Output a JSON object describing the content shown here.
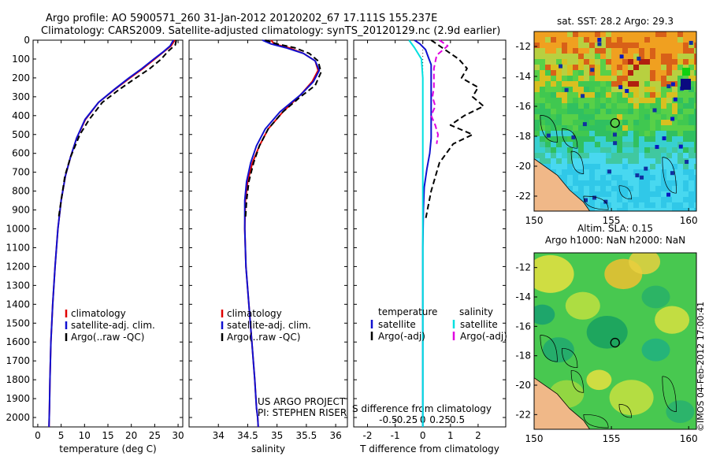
{
  "header": {
    "line1": "Argo profile: AO 5900571_260 31-Jan-2012 20120202_67 17.111S 155.237E",
    "line2": "Climatology: CARS2009. Satellite-adjusted climatology: synTS_20120129.nc (2.9d earlier)"
  },
  "colors": {
    "climatology": "#e00000",
    "satellite": "#1010d0",
    "argo": "#000000",
    "salinity_satellite": "#00e0e0",
    "salinity_argo": "#e000e0"
  },
  "depth_axis": {
    "ticks": [
      0,
      100,
      200,
      300,
      400,
      500,
      600,
      700,
      800,
      900,
      1000,
      1100,
      1200,
      1300,
      1400,
      1500,
      1600,
      1700,
      1800,
      1900,
      2000
    ],
    "range": [
      0,
      2050
    ]
  },
  "chart_data": [
    {
      "type": "line",
      "id": "temperature",
      "xlabel": "temperature (deg C)",
      "xlim": [
        -1,
        31
      ],
      "xticks": [
        0,
        5,
        10,
        15,
        20,
        25,
        30
      ],
      "ylim": [
        0,
        2050
      ],
      "legend": {
        "placement": "lower-left",
        "entries": [
          {
            "label": "climatology",
            "color": "#e00000"
          },
          {
            "label": "satellite-adj. clim.",
            "color": "#1010d0"
          },
          {
            "label": "Argo(..raw -QC)",
            "color": "#000000"
          }
        ]
      },
      "series": [
        {
          "name": "climatology",
          "color": "#e00000",
          "x": [
            29.3,
            28.5,
            27.0,
            25.0,
            22.5,
            19.7,
            16.5,
            13.0,
            10.2,
            8.3,
            7.0,
            5.9,
            5.0,
            4.3,
            3.7,
            3.2,
            2.8,
            2.6,
            2.5,
            2.4
          ],
          "y": [
            0,
            30,
            60,
            100,
            150,
            200,
            260,
            330,
            420,
            520,
            620,
            720,
            850,
            1000,
            1200,
            1400,
            1600,
            1800,
            1950,
            2050
          ]
        },
        {
          "name": "satellite-adj. clim.",
          "color": "#1010d0",
          "x": [
            29.0,
            28.3,
            26.9,
            24.8,
            22.3,
            19.5,
            16.4,
            13.0,
            10.1,
            8.3,
            7.0,
            5.9,
            5.0,
            4.3,
            3.7,
            3.2,
            2.8,
            2.6,
            2.5,
            2.4
          ],
          "y": [
            0,
            30,
            60,
            100,
            150,
            200,
            260,
            330,
            420,
            520,
            620,
            720,
            850,
            1000,
            1200,
            1400,
            1600,
            1800,
            1950,
            2050
          ]
        },
        {
          "name": "Argo(..raw -QC)",
          "color": "#000000",
          "x": [
            29.6,
            29.4,
            27.8,
            26.4,
            24.0,
            21.0,
            17.5,
            13.8,
            11.0,
            9.0,
            7.0,
            5.8,
            5.0,
            4.4
          ],
          "y": [
            0,
            25,
            60,
            100,
            150,
            200,
            260,
            330,
            420,
            500,
            620,
            720,
            850,
            950
          ]
        }
      ]
    },
    {
      "type": "line",
      "id": "salinity",
      "xlabel": "salinity",
      "xlim": [
        33.5,
        36.2
      ],
      "xticks": [
        34,
        34.5,
        35,
        35.5,
        36
      ],
      "ylim": [
        0,
        2050
      ],
      "legend": {
        "placement": "lower-left",
        "entries": [
          {
            "label": "climatology",
            "color": "#e00000"
          },
          {
            "label": "satellite-adj. clim.",
            "color": "#1010d0"
          },
          {
            "label": "Argo(..raw -QC)",
            "color": "#000000"
          }
        ]
      },
      "annotation": [
        "US ARGO PROJECT",
        "PI: STEPHEN RISER"
      ],
      "series": [
        {
          "name": "climatology",
          "color": "#e00000",
          "x": [
            34.9,
            34.95,
            35.2,
            35.45,
            35.65,
            35.7,
            35.6,
            35.4,
            35.1,
            34.85,
            34.7,
            34.58,
            34.5,
            34.46,
            34.45,
            34.47,
            34.52,
            34.57,
            34.62,
            34.65,
            34.67,
            34.68
          ],
          "y": [
            0,
            20,
            40,
            70,
            110,
            160,
            220,
            290,
            380,
            470,
            560,
            650,
            750,
            850,
            1000,
            1200,
            1400,
            1600,
            1800,
            1950,
            2000,
            2050
          ]
        },
        {
          "name": "satellite-adj. clim.",
          "color": "#1010d0",
          "x": [
            34.75,
            34.9,
            35.15,
            35.45,
            35.65,
            35.72,
            35.62,
            35.4,
            35.05,
            34.8,
            34.65,
            34.55,
            34.48,
            34.45,
            34.45,
            34.47,
            34.52,
            34.57,
            34.62,
            34.65,
            34.67,
            34.68
          ],
          "y": [
            0,
            20,
            40,
            70,
            110,
            160,
            220,
            290,
            380,
            470,
            560,
            650,
            750,
            850,
            1000,
            1200,
            1400,
            1600,
            1800,
            1950,
            2000,
            2050
          ]
        },
        {
          "name": "Argo(..raw -QC)",
          "color": "#000000",
          "x": [
            34.8,
            35.0,
            35.3,
            35.55,
            35.7,
            35.75,
            35.65,
            35.4,
            35.1,
            34.85,
            34.7,
            34.6,
            34.52,
            34.48,
            34.46
          ],
          "y": [
            0,
            20,
            40,
            70,
            110,
            170,
            240,
            300,
            380,
            470,
            560,
            650,
            750,
            850,
            950
          ]
        }
      ]
    },
    {
      "type": "line",
      "id": "differences",
      "xlabel": "T difference from climatology",
      "xlabel_top": "S difference from climatology",
      "xlim": [
        -2.5,
        3.0
      ],
      "xticks": [
        -2,
        -1,
        0,
        1,
        2
      ],
      "xticks_labels": [
        "-2",
        "-1",
        "0",
        "1",
        "2"
      ],
      "xticks_top": [
        -1.25,
        -0.625,
        0,
        0.625,
        1.25
      ],
      "xticks_top_labels": [
        "-0.5",
        "-0.25",
        "0",
        "0.25",
        "0.5"
      ],
      "ylim": [
        0,
        2050
      ],
      "legend": {
        "placement": "lower-left",
        "headers": [
          "temperature",
          "salinity"
        ],
        "entries": [
          {
            "label": "satellite",
            "color": "#1010d0"
          },
          {
            "label": "Argo(-adj)",
            "color": "#000000"
          },
          {
            "label": "satellite",
            "color": "#00e0e0"
          },
          {
            "label": "Argo(-adj)",
            "color": "#e000e0"
          }
        ]
      },
      "series": [
        {
          "name": "temperature satellite",
          "color": "#1010d0",
          "x": [
            -0.3,
            -0.1,
            0.1,
            0.2,
            0.3,
            0.3,
            0.3,
            0.3,
            0.3,
            0.3,
            0.25,
            0.15,
            0.05,
            0.02,
            0.0,
            0.0,
            0.0,
            0.0,
            0.0
          ],
          "y": [
            0,
            20,
            50,
            90,
            130,
            200,
            280,
            360,
            440,
            520,
            600,
            680,
            780,
            900,
            1100,
            1300,
            1600,
            1900,
            2050
          ]
        },
        {
          "name": "temperature Argo(-adj)",
          "color": "#000000",
          "x": [
            0.3,
            0.8,
            1.3,
            1.6,
            1.4,
            2.0,
            1.8,
            2.2,
            1.5,
            1.0,
            1.8,
            1.1,
            0.6,
            0.3,
            0.1
          ],
          "y": [
            0,
            50,
            100,
            150,
            200,
            250,
            300,
            350,
            400,
            450,
            500,
            550,
            650,
            800,
            950
          ]
        },
        {
          "name": "salinity satellite",
          "color": "#00e0e0",
          "x": [
            -0.5,
            -0.3,
            -0.05,
            0.0,
            0.0,
            0.0,
            0.0,
            0.0,
            0.0,
            0.0,
            0.0,
            0.0
          ],
          "y": [
            0,
            40,
            100,
            200,
            300,
            400,
            600,
            800,
            1000,
            1300,
            1600,
            2050
          ]
        },
        {
          "name": "salinity Argo(-adj)",
          "color": "#e000e0",
          "x": [
            0.6,
            0.9,
            0.5,
            0.4,
            0.4,
            0.35,
            0.45,
            0.3,
            0.45,
            0.55,
            0.5
          ],
          "y": [
            0,
            30,
            80,
            150,
            250,
            300,
            350,
            400,
            450,
            500,
            550
          ]
        }
      ]
    },
    {
      "type": "heatmap",
      "id": "sst-map",
      "title": "sat. SST: 28.2  Argo: 29.3",
      "xlim": [
        150,
        160.5
      ],
      "ylim": [
        -23,
        -11
      ],
      "xticks": [
        150,
        155,
        160
      ],
      "yticks": [
        -12,
        -14,
        -16,
        -18,
        -20,
        -22
      ],
      "yticks_labels": [
        "-12",
        "-14",
        "-16",
        "-18",
        "-20",
        "-22"
      ],
      "argo_location": {
        "lon": 155.237,
        "lat": -17.111
      }
    },
    {
      "type": "heatmap",
      "id": "sla-map",
      "title": "Altim. SLA: 0.15",
      "subtitle": "Argo h1000: NaN h2000: NaN",
      "xlim": [
        150,
        160.5
      ],
      "ylim": [
        -23,
        -11
      ],
      "xticks": [
        150,
        155,
        160
      ],
      "yticks": [
        -12,
        -14,
        -16,
        -18,
        -20,
        -22
      ],
      "yticks_labels": [
        "-12",
        "-14",
        "-16",
        "-18",
        "-20",
        "-22"
      ],
      "argo_location": {
        "lon": 155.237,
        "lat": -17.111
      }
    }
  ],
  "credit": "©IMOS 04-Feb-2012 17:00:41"
}
